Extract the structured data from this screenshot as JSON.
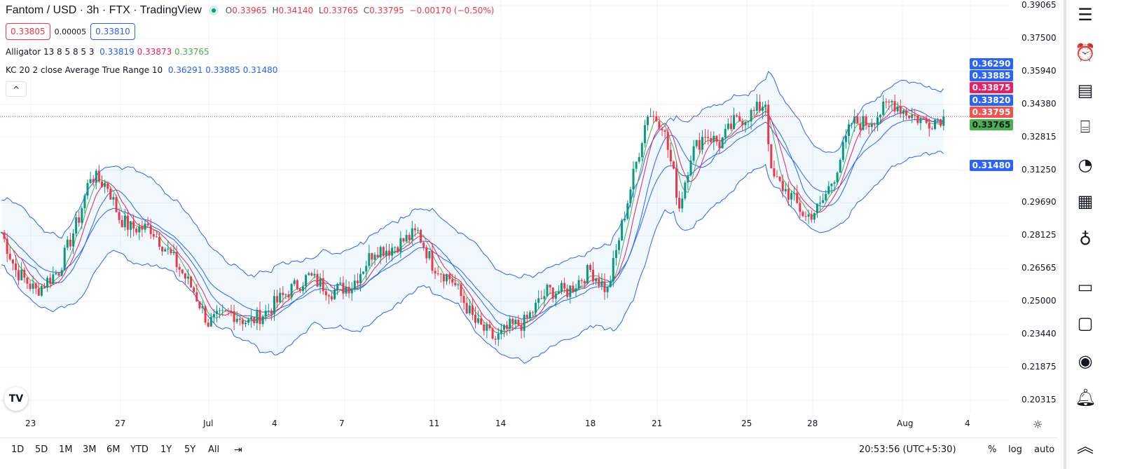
{
  "header": {
    "title": "Fantom / USD · 3h · FTX · TradingView",
    "open_label": "O",
    "open": "0.33965",
    "high_label": "H",
    "high": "0.34140",
    "low_label": "L",
    "low": "0.33765",
    "close_label": "C",
    "close": "0.33795",
    "change": "−0.00170 (−0.50%)"
  },
  "quote": {
    "sell": "0.33805",
    "spread": "0.00005",
    "buy": "0.33810"
  },
  "indicators": {
    "alligator": {
      "label": "Alligator 13 8 5 8 5 3",
      "jaw": "0.33819",
      "teeth": "0.33873",
      "lips": "0.33765"
    },
    "kc": {
      "label": "KC 20 2 close Average True Range 10",
      "upper": "0.36291",
      "basis": "0.33885",
      "lower": "0.31480"
    },
    "collapse": "^"
  },
  "price_axis": [
    "0.39065",
    "0.37500",
    "0.35940",
    "0.34380",
    "0.32815",
    "0.31250",
    "0.29690",
    "0.28125",
    "0.26565",
    "0.25000",
    "0.23440",
    "0.21875",
    "0.20315"
  ],
  "price_tags": [
    {
      "v": "0.36290",
      "c": "#2962ff",
      "p": 0.3629
    },
    {
      "v": "0.33885",
      "c": "#2962ff",
      "p": 0.3575
    },
    {
      "v": "0.33875",
      "c": "#e91e63",
      "p": 0.3516
    },
    {
      "v": "0.33820",
      "c": "#2962ff",
      "p": 0.3457
    },
    {
      "v": "0.33795",
      "c": "#f0544f",
      "p": 0.3399
    },
    {
      "v": "0.33765",
      "c": "#4caf50",
      "p": 0.334
    },
    {
      "v": "0.31480",
      "c": "#2962ff",
      "p": 0.3148
    }
  ],
  "time_axis": [
    "23",
    "27",
    "Jul",
    "4",
    "7",
    "11",
    "14",
    "18",
    "21",
    "25",
    "28",
    "Aug",
    "4"
  ],
  "bottom": {
    "ranges": [
      "1D",
      "5D",
      "1M",
      "3M",
      "6M",
      "YTD",
      "1Y",
      "5Y",
      "All"
    ],
    "clock": "20:53:56 (UTC+5:30)",
    "percent": "%",
    "log": "log",
    "auto": "auto"
  },
  "colors": {
    "up": "#089981",
    "down": "#f23645",
    "jaw": "#2962ff",
    "teeth": "#e91e63",
    "lips": "#4caf50",
    "kc": "#2962ff"
  },
  "chart_data": {
    "type": "candlestick",
    "symbol": "FTM/USD",
    "interval": "3h",
    "ylim": [
      0.20315,
      0.39065
    ],
    "anchor_closes": [
      [
        0,
        0.283
      ],
      [
        5,
        0.265
      ],
      [
        12,
        0.255
      ],
      [
        20,
        0.265
      ],
      [
        27,
        0.29
      ],
      [
        31,
        0.31
      ],
      [
        37,
        0.305
      ],
      [
        41,
        0.29
      ],
      [
        45,
        0.285
      ],
      [
        52,
        0.285
      ],
      [
        60,
        0.27
      ],
      [
        67,
        0.255
      ],
      [
        72,
        0.24
      ],
      [
        80,
        0.245
      ],
      [
        86,
        0.24
      ],
      [
        92,
        0.245
      ],
      [
        100,
        0.255
      ],
      [
        107,
        0.262
      ],
      [
        115,
        0.255
      ],
      [
        122,
        0.258
      ],
      [
        130,
        0.275
      ],
      [
        135,
        0.275
      ],
      [
        145,
        0.283
      ],
      [
        150,
        0.268
      ],
      [
        157,
        0.26
      ],
      [
        165,
        0.24
      ],
      [
        172,
        0.232
      ],
      [
        177,
        0.238
      ],
      [
        182,
        0.24
      ],
      [
        190,
        0.255
      ],
      [
        197,
        0.255
      ],
      [
        205,
        0.265
      ],
      [
        211,
        0.255
      ],
      [
        215,
        0.28
      ],
      [
        220,
        0.31
      ],
      [
        225,
        0.34
      ],
      [
        230,
        0.335
      ],
      [
        234,
        0.31
      ],
      [
        236,
        0.295
      ],
      [
        240,
        0.32
      ],
      [
        245,
        0.33
      ],
      [
        250,
        0.325
      ],
      [
        255,
        0.335
      ],
      [
        262,
        0.34
      ],
      [
        266,
        0.345
      ],
      [
        268,
        0.31
      ],
      [
        275,
        0.3
      ],
      [
        280,
        0.29
      ],
      [
        285,
        0.295
      ],
      [
        290,
        0.31
      ],
      [
        296,
        0.335
      ],
      [
        302,
        0.335
      ],
      [
        310,
        0.345
      ],
      [
        315,
        0.34
      ],
      [
        322,
        0.335
      ],
      [
        328,
        0.338
      ]
    ],
    "last_close": 0.33795
  }
}
